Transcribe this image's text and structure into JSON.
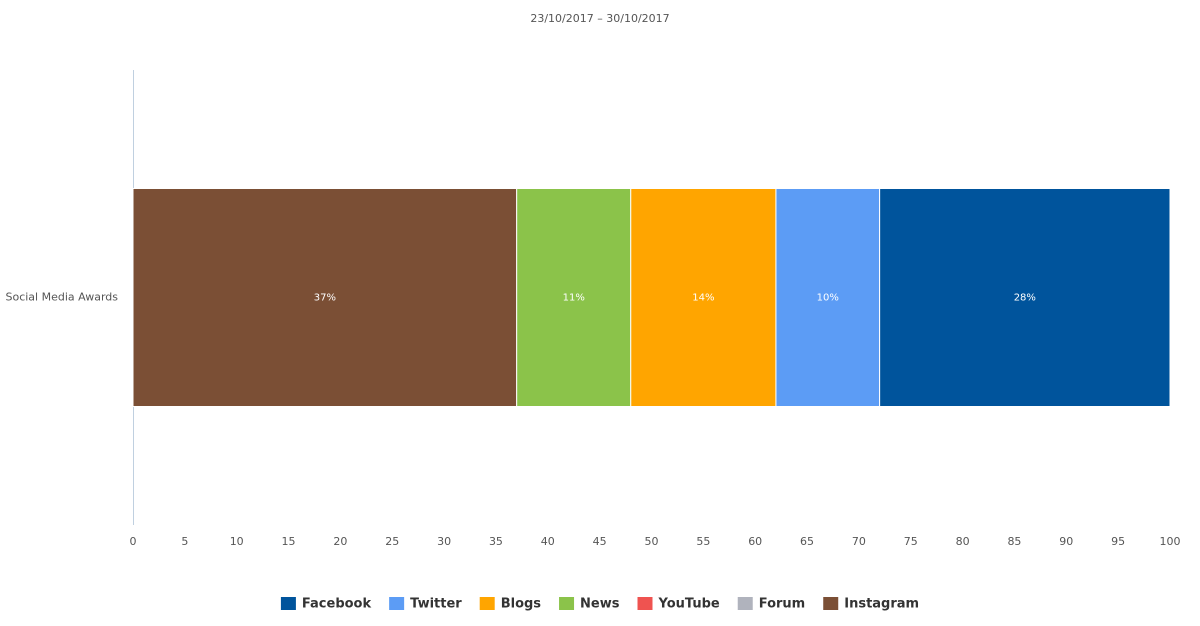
{
  "chart_data": {
    "type": "stacked-bar-horizontal",
    "title": "23/10/2017 – 30/10/2017",
    "categories": [
      "Social Media Awards"
    ],
    "xlim": [
      0,
      100
    ],
    "xticks": [
      0,
      5,
      10,
      15,
      20,
      25,
      30,
      35,
      40,
      45,
      50,
      55,
      60,
      65,
      70,
      75,
      80,
      85,
      90,
      95,
      100
    ],
    "series": [
      {
        "name": "Facebook",
        "color": "#00549c",
        "values": [
          28
        ],
        "value_labels": [
          "28%"
        ]
      },
      {
        "name": "Twitter",
        "color": "#5c9cf5",
        "values": [
          10
        ],
        "value_labels": [
          "10%"
        ]
      },
      {
        "name": "Blogs",
        "color": "#ffa500",
        "values": [
          14
        ],
        "value_labels": [
          "14%"
        ]
      },
      {
        "name": "News",
        "color": "#8bc34a",
        "values": [
          11
        ],
        "value_labels": [
          "11%"
        ]
      },
      {
        "name": "YouTube",
        "color": "#ef5350",
        "values": [
          0
        ]
      },
      {
        "name": "Forum",
        "color": "#b0b3bd",
        "values": [
          0
        ]
      },
      {
        "name": "Instagram",
        "color": "#7b4f35",
        "values": [
          37
        ],
        "value_labels": [
          "37%"
        ]
      }
    ]
  }
}
